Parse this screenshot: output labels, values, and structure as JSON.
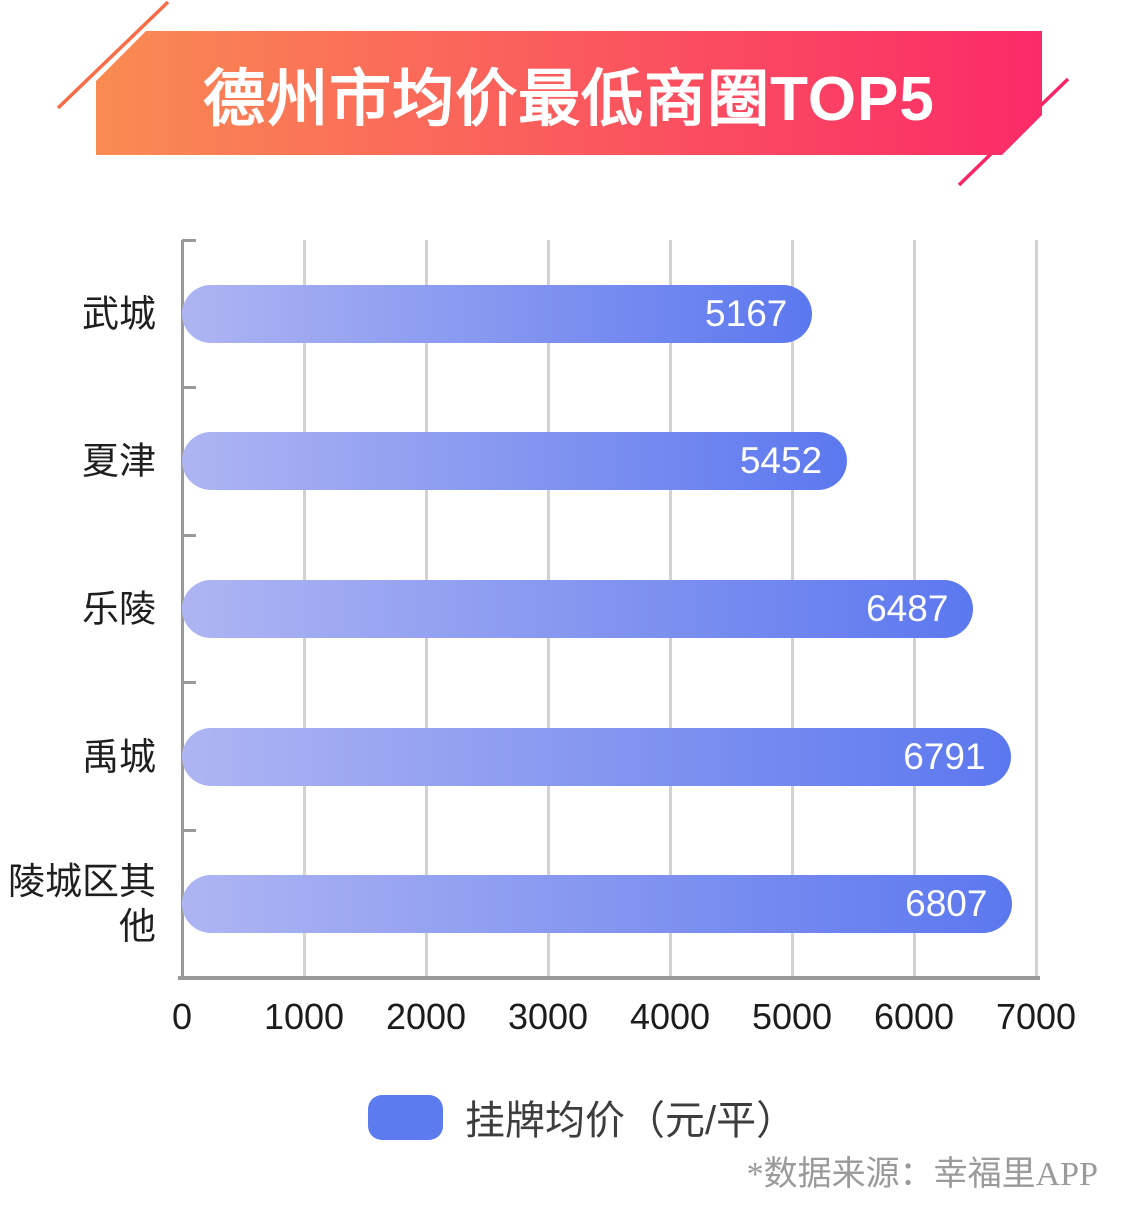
{
  "title": "德州市均价最低商圈TOP5",
  "chart_data": {
    "type": "bar",
    "orientation": "horizontal",
    "title": "德州市均价最低商圈TOP5",
    "categories": [
      "武城",
      "夏津",
      "乐陵",
      "禹城",
      "陵城区其他"
    ],
    "series": [
      {
        "name": "挂牌均价（元/平）",
        "values": [
          5167,
          5452,
          6487,
          6791,
          6807
        ]
      }
    ],
    "value_labels": [
      "5167",
      "5452",
      "6487",
      "6791",
      "6807"
    ],
    "xlabel": "",
    "ylabel": "",
    "xlim": [
      0,
      7000
    ],
    "x_ticks": [
      0,
      1000,
      2000,
      3000,
      4000,
      5000,
      6000,
      7000
    ],
    "grid": "vertical",
    "legend_position": "bottom"
  },
  "legend": {
    "label": "挂牌均价（元/平）"
  },
  "footer": {
    "source": "*数据来源：幸福里APP"
  },
  "colors": {
    "banner_gradient_start": "#f98b52",
    "banner_gradient_end": "#fb2a68",
    "bar_gradient_start": "#aeb5f2",
    "bar_gradient_end": "#5c78ef",
    "bar_value_text": "#ffffff",
    "legend_swatch": "#5b7bee",
    "grid_line": "#d2d2d2",
    "axis_line": "#9a9a9a",
    "decor_line_orange": "#f86c46",
    "decor_line_pink": "#fb2566"
  }
}
